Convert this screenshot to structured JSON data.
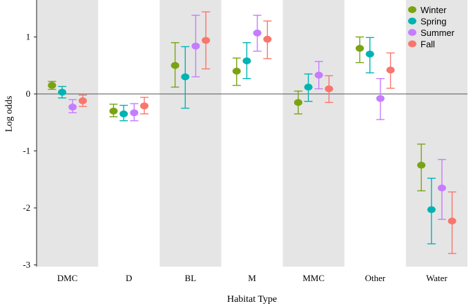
{
  "chart_data": {
    "type": "scatter",
    "subtype": "point-with-errorbars",
    "title": "",
    "xlabel": "Habitat Type",
    "ylabel": "Log odds",
    "ylim": [
      -3,
      1.6
    ],
    "yticks": [
      1,
      0,
      -1,
      -2,
      -3
    ],
    "ytick_labels": [
      "1",
      "0",
      "-1",
      "-2",
      "-3"
    ],
    "categories": [
      "DMC",
      "D",
      "BL",
      "M",
      "MMC",
      "Other",
      "Water"
    ],
    "shaded_categories": [
      0,
      2,
      4,
      6
    ],
    "reference_line": 0,
    "legend_position": "top-right",
    "series": [
      {
        "name": "Winter",
        "color": "#7aa312",
        "values": [
          0.15,
          -0.3,
          0.5,
          0.4,
          -0.15,
          0.8,
          -1.25
        ],
        "lower": [
          0.08,
          -0.4,
          0.12,
          0.15,
          -0.35,
          0.55,
          -1.7
        ],
        "upper": [
          0.22,
          -0.18,
          0.9,
          0.63,
          0.05,
          1.0,
          -0.88
        ]
      },
      {
        "name": "Spring",
        "color": "#00b3b3",
        "values": [
          0.03,
          -0.35,
          0.3,
          0.58,
          0.12,
          0.7,
          -2.03
        ],
        "lower": [
          -0.07,
          -0.47,
          -0.25,
          0.27,
          -0.13,
          0.37,
          -2.63
        ],
        "upper": [
          0.13,
          -0.2,
          0.83,
          0.9,
          0.35,
          0.99,
          -1.48
        ]
      },
      {
        "name": "Summer",
        "color": "#c77cff",
        "values": [
          -0.23,
          -0.33,
          0.84,
          1.07,
          0.33,
          -0.08,
          -1.65
        ],
        "lower": [
          -0.33,
          -0.47,
          0.3,
          0.75,
          0.09,
          -0.45,
          -2.2
        ],
        "upper": [
          -0.1,
          -0.17,
          1.38,
          1.38,
          0.57,
          0.27,
          -1.15
        ]
      },
      {
        "name": "Fall",
        "color": "#f8766d",
        "values": [
          -0.12,
          -0.21,
          0.94,
          0.96,
          0.09,
          0.42,
          -2.23
        ],
        "lower": [
          -0.22,
          -0.35,
          0.44,
          0.62,
          -0.15,
          0.1,
          -2.8
        ],
        "upper": [
          -0.02,
          -0.06,
          1.44,
          1.28,
          0.32,
          0.72,
          -1.72
        ]
      }
    ]
  }
}
